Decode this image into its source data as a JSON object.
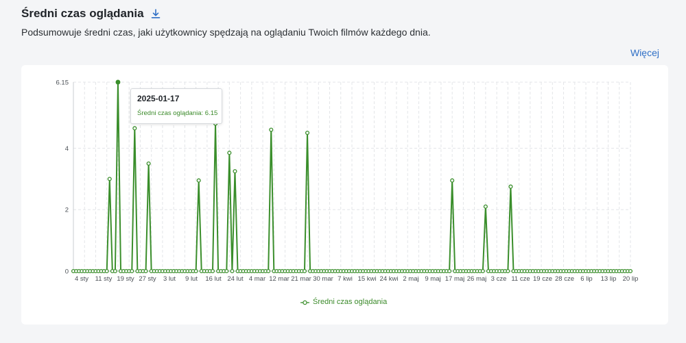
{
  "header": {
    "title": "Średni czas oglądania",
    "subtitle": "Podsumowuje średni czas, jaki użytkownicy spędzają na oglądaniu Twoich filmów każdego dnia.",
    "more_label": "Więcej",
    "download_icon": "download-icon"
  },
  "tooltip": {
    "date": "2025-01-17",
    "series_label": "Średni czas oglądania",
    "value": "6.15"
  },
  "legend": {
    "label": "Średni czas oglądania",
    "icon": "line-with-circle-icon"
  },
  "colors": {
    "series": "#3a8e2b",
    "grid": "#e3e5e8",
    "link": "#2f6fc6"
  },
  "chart_data": {
    "type": "line",
    "title": "",
    "xlabel": "",
    "ylabel": "",
    "x_start": "2025-01-01",
    "x_end": "2025-07-20",
    "ylim": [
      0,
      6.15
    ],
    "y_ticks": [
      "0",
      "2",
      "4",
      "6.15"
    ],
    "x_tick_labels": [
      "4 sty",
      "11 sty",
      "19 sty",
      "27 sty",
      "3 lut",
      "9 lut",
      "16 lut",
      "24 lut",
      "4 mar",
      "12 mar",
      "21 mar",
      "30 mar",
      "7 kwi",
      "15 kwi",
      "24 kwi",
      "2 maj",
      "9 maj",
      "17 maj",
      "26 maj",
      "3 cze",
      "11 cze",
      "19 cze",
      "28 cze",
      "6 lip",
      "13 lip",
      "20 lip"
    ],
    "grid": true,
    "legend_position": "bottom-center",
    "series": [
      {
        "name": "Średni czas oglądania",
        "points": [
          {
            "date": "2025-01-14",
            "value": 3.0
          },
          {
            "date": "2025-01-17",
            "value": 6.15
          },
          {
            "date": "2025-01-23",
            "value": 4.65
          },
          {
            "date": "2025-01-28",
            "value": 3.5
          },
          {
            "date": "2025-02-15",
            "value": 2.95
          },
          {
            "date": "2025-02-21",
            "value": 4.8
          },
          {
            "date": "2025-02-26",
            "value": 3.85
          },
          {
            "date": "2025-02-28",
            "value": 3.25
          },
          {
            "date": "2025-03-13",
            "value": 4.6
          },
          {
            "date": "2025-03-26",
            "value": 4.5
          },
          {
            "date": "2025-05-17",
            "value": 2.95
          },
          {
            "date": "2025-05-29",
            "value": 2.1
          },
          {
            "date": "2025-06-07",
            "value": 2.75
          }
        ],
        "default_value": 0
      }
    ]
  }
}
